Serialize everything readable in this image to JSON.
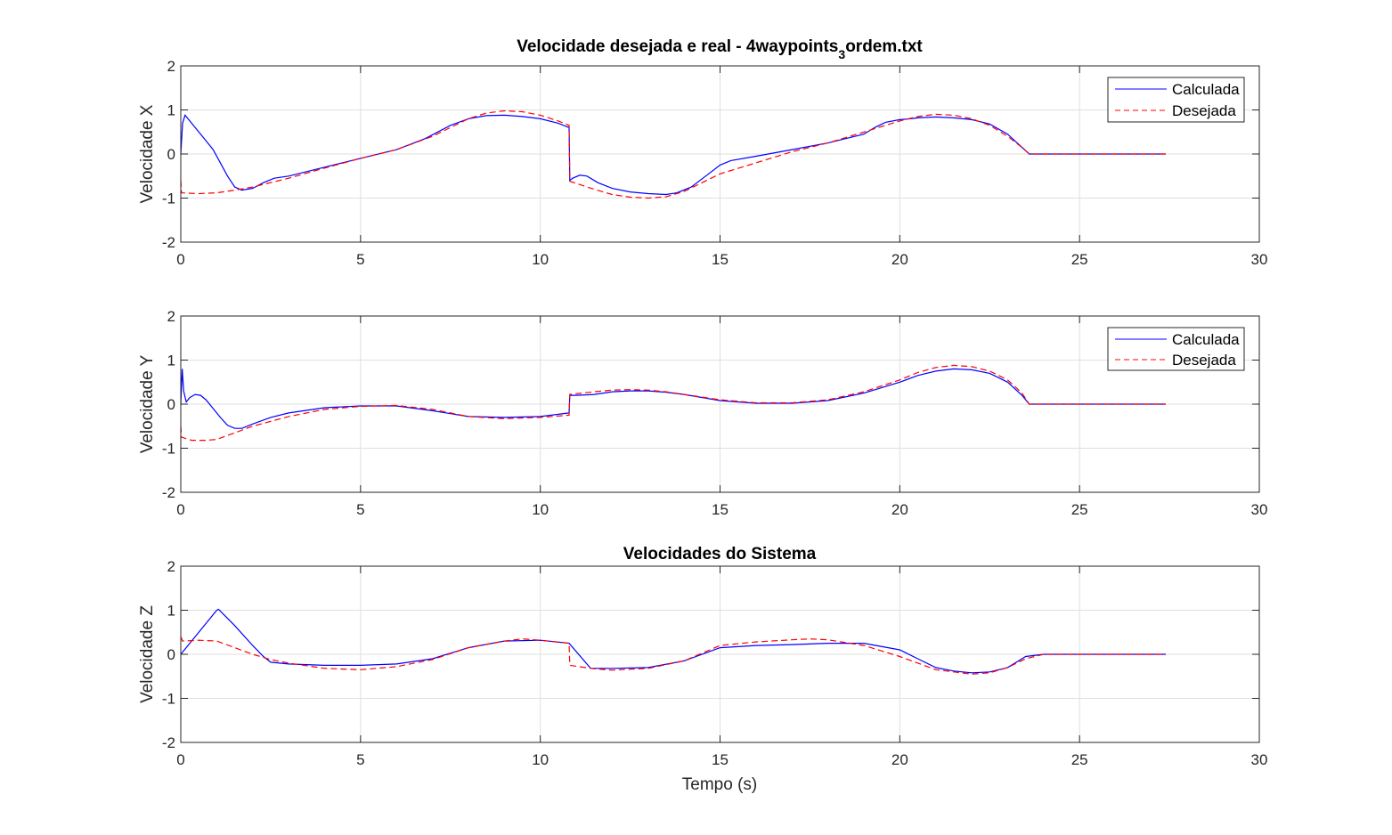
{
  "figure_title": {
    "prefix": "Velocidade desejada e real - 4waypoints",
    "subscript": "3",
    "suffix": "ordem.txt"
  },
  "x_axis_label": "Tempo (s)",
  "colors": {
    "calculada": "#0000ff",
    "desejada": "#ff0000"
  },
  "chart_data": [
    {
      "type": "line",
      "title": "Velocidade desejada e real - 4waypoints_3ordem.txt",
      "ylabel": "Velocidade X",
      "xlabel": "",
      "xlim": [
        0,
        30
      ],
      "ylim": [
        -2,
        2
      ],
      "xticks": [
        0,
        5,
        10,
        15,
        20,
        25,
        30
      ],
      "yticks": [
        -2,
        -1,
        0,
        1,
        2
      ],
      "grid": true,
      "legend": "top-right",
      "series": [
        {
          "name": "Calculada",
          "style": "solid",
          "x": [
            0,
            0.05,
            0.12,
            0.2,
            0.35,
            0.5,
            0.7,
            0.9,
            1.1,
            1.3,
            1.5,
            1.7,
            2.0,
            2.3,
            2.6,
            3,
            4,
            5,
            6,
            6.8,
            7.5,
            8,
            8.5,
            9,
            9.5,
            10,
            10.5,
            10.8,
            10.82,
            10.9,
            11.1,
            11.3,
            11.6,
            12,
            12.5,
            13,
            13.5,
            13.8,
            14.2,
            14.6,
            15,
            15.3,
            16,
            17,
            18,
            19,
            19.3,
            19.6,
            20,
            20.3,
            20.5,
            21,
            21.5,
            22,
            22.5,
            23,
            23.4,
            23.6,
            24,
            25,
            26,
            27.4
          ],
          "y": [
            0,
            0.7,
            0.88,
            0.8,
            0.65,
            0.5,
            0.3,
            0.1,
            -0.2,
            -0.5,
            -0.75,
            -0.82,
            -0.78,
            -0.65,
            -0.55,
            -0.5,
            -0.3,
            -0.1,
            0.1,
            0.35,
            0.65,
            0.8,
            0.87,
            0.88,
            0.85,
            0.8,
            0.7,
            0.6,
            -0.6,
            -0.55,
            -0.48,
            -0.5,
            -0.65,
            -0.78,
            -0.86,
            -0.9,
            -0.92,
            -0.88,
            -0.75,
            -0.5,
            -0.25,
            -0.15,
            -0.05,
            0.1,
            0.25,
            0.45,
            0.6,
            0.72,
            0.78,
            0.8,
            0.82,
            0.84,
            0.82,
            0.78,
            0.68,
            0.45,
            0.15,
            0,
            0,
            0,
            0,
            0
          ]
        },
        {
          "name": "Desejada",
          "style": "dashed",
          "x": [
            0,
            0.02,
            0.5,
            1,
            1.5,
            2,
            3,
            4,
            5,
            6,
            7,
            8,
            8.5,
            9,
            9.5,
            10,
            10.5,
            10.8,
            10.82,
            11.5,
            12,
            12.5,
            13,
            13.5,
            14,
            14.5,
            15,
            16,
            17,
            18,
            19,
            20,
            20.5,
            21,
            21.5,
            22,
            22.5,
            23,
            23.4,
            23.6,
            24,
            25,
            26,
            27.4
          ],
          "y": [
            -0.6,
            -0.88,
            -0.9,
            -0.88,
            -0.82,
            -0.75,
            -0.55,
            -0.32,
            -0.1,
            0.1,
            0.4,
            0.8,
            0.93,
            0.98,
            0.96,
            0.88,
            0.75,
            0.65,
            -0.62,
            -0.8,
            -0.92,
            -0.98,
            -1.0,
            -0.97,
            -0.85,
            -0.65,
            -0.45,
            -0.2,
            0.05,
            0.25,
            0.5,
            0.75,
            0.85,
            0.9,
            0.88,
            0.8,
            0.65,
            0.4,
            0.15,
            0,
            0,
            0,
            0,
            0
          ]
        }
      ]
    },
    {
      "type": "line",
      "title": "",
      "ylabel": "Velocidade Y",
      "xlabel": "",
      "xlim": [
        0,
        30
      ],
      "ylim": [
        -2,
        2
      ],
      "xticks": [
        0,
        5,
        10,
        15,
        20,
        25,
        30
      ],
      "yticks": [
        -2,
        -1,
        0,
        1,
        2
      ],
      "grid": true,
      "legend": "top-right",
      "series": [
        {
          "name": "Calculada",
          "style": "solid",
          "x": [
            0,
            0.04,
            0.08,
            0.15,
            0.25,
            0.4,
            0.55,
            0.7,
            0.9,
            1.1,
            1.3,
            1.5,
            1.7,
            2,
            2.5,
            3,
            4,
            5,
            6,
            7,
            8,
            9,
            10,
            10.8,
            10.82,
            11,
            11.5,
            12,
            12.5,
            13,
            13.5,
            14,
            15,
            16,
            17,
            18,
            19,
            20,
            20.5,
            21,
            21.5,
            22,
            22.5,
            23,
            23.4,
            23.6,
            24,
            25,
            26,
            27.4
          ],
          "y": [
            0,
            0.8,
            0.3,
            0.05,
            0.15,
            0.22,
            0.2,
            0.1,
            -0.1,
            -0.3,
            -0.48,
            -0.55,
            -0.55,
            -0.45,
            -0.3,
            -0.2,
            -0.08,
            -0.04,
            -0.04,
            -0.15,
            -0.28,
            -0.3,
            -0.28,
            -0.2,
            0.2,
            0.2,
            0.22,
            0.28,
            0.3,
            0.3,
            0.27,
            0.22,
            0.08,
            0.02,
            0.02,
            0.08,
            0.25,
            0.5,
            0.65,
            0.75,
            0.8,
            0.78,
            0.7,
            0.5,
            0.2,
            0,
            0,
            0,
            0,
            0
          ]
        },
        {
          "name": "Desejada",
          "style": "dashed",
          "x": [
            0,
            0.02,
            0.3,
            0.7,
            1,
            1.5,
            2,
            3,
            4,
            5,
            6,
            7,
            8,
            9,
            10,
            10.8,
            10.82,
            11.5,
            12,
            12.5,
            13,
            13.5,
            14,
            15,
            16,
            17,
            18,
            19,
            20,
            20.5,
            21,
            21.5,
            22,
            22.5,
            23,
            23.4,
            23.6,
            24,
            25,
            26,
            27.4
          ],
          "y": [
            -0.5,
            -0.75,
            -0.82,
            -0.82,
            -0.8,
            -0.65,
            -0.5,
            -0.28,
            -0.12,
            -0.05,
            -0.03,
            -0.12,
            -0.28,
            -0.33,
            -0.3,
            -0.25,
            0.22,
            0.28,
            0.32,
            0.33,
            0.32,
            0.28,
            0.22,
            0.1,
            0.03,
            0.03,
            0.1,
            0.28,
            0.55,
            0.72,
            0.83,
            0.88,
            0.85,
            0.75,
            0.55,
            0.25,
            0,
            0,
            0,
            0,
            0
          ]
        }
      ]
    },
    {
      "type": "line",
      "title": "Velocidades do Sistema",
      "ylabel": "Velocidade Z",
      "xlabel": "Tempo (s)",
      "xlim": [
        0,
        30
      ],
      "ylim": [
        -2,
        2
      ],
      "xticks": [
        0,
        5,
        10,
        15,
        20,
        25,
        30
      ],
      "yticks": [
        -2,
        -1,
        0,
        1,
        2
      ],
      "grid": true,
      "legend": "none",
      "series": [
        {
          "name": "Calculada",
          "style": "solid",
          "x": [
            0,
            0.5,
            1,
            1.05,
            1.5,
            2,
            2.3,
            2.5,
            3,
            4,
            5,
            6,
            7,
            8,
            9,
            10,
            10.8,
            11.4,
            12,
            13,
            14,
            15,
            16,
            17,
            18,
            19,
            20,
            20.5,
            21,
            21.5,
            22,
            22.5,
            23,
            23.5,
            24,
            25,
            26,
            27.4
          ],
          "y": [
            0,
            0.5,
            1.0,
            1.02,
            0.65,
            0.2,
            -0.05,
            -0.18,
            -0.22,
            -0.25,
            -0.25,
            -0.22,
            -0.1,
            0.15,
            0.3,
            0.32,
            0.25,
            -0.32,
            -0.32,
            -0.3,
            -0.15,
            0.15,
            0.2,
            0.22,
            0.25,
            0.25,
            0.1,
            -0.1,
            -0.3,
            -0.38,
            -0.42,
            -0.4,
            -0.3,
            -0.05,
            0,
            0,
            0,
            0
          ]
        },
        {
          "name": "Desejada",
          "style": "dashed",
          "x": [
            0,
            0.05,
            0.5,
            1,
            1.5,
            2,
            2.5,
            3,
            4,
            5,
            6,
            7,
            8,
            9,
            9.5,
            10,
            10.8,
            10.82,
            11.5,
            12,
            13,
            14,
            15,
            16,
            17,
            17.5,
            18,
            19,
            20,
            21,
            22,
            22.5,
            23,
            23.5,
            24,
            25,
            26,
            27.4
          ],
          "y": [
            0.4,
            0.3,
            0.32,
            0.3,
            0.15,
            0,
            -0.12,
            -0.2,
            -0.32,
            -0.35,
            -0.28,
            -0.12,
            0.15,
            0.3,
            0.35,
            0.32,
            0.25,
            -0.25,
            -0.33,
            -0.36,
            -0.32,
            -0.15,
            0.2,
            0.28,
            0.33,
            0.35,
            0.33,
            0.2,
            -0.05,
            -0.35,
            -0.45,
            -0.42,
            -0.3,
            -0.1,
            0,
            0,
            0,
            0
          ]
        }
      ]
    }
  ]
}
